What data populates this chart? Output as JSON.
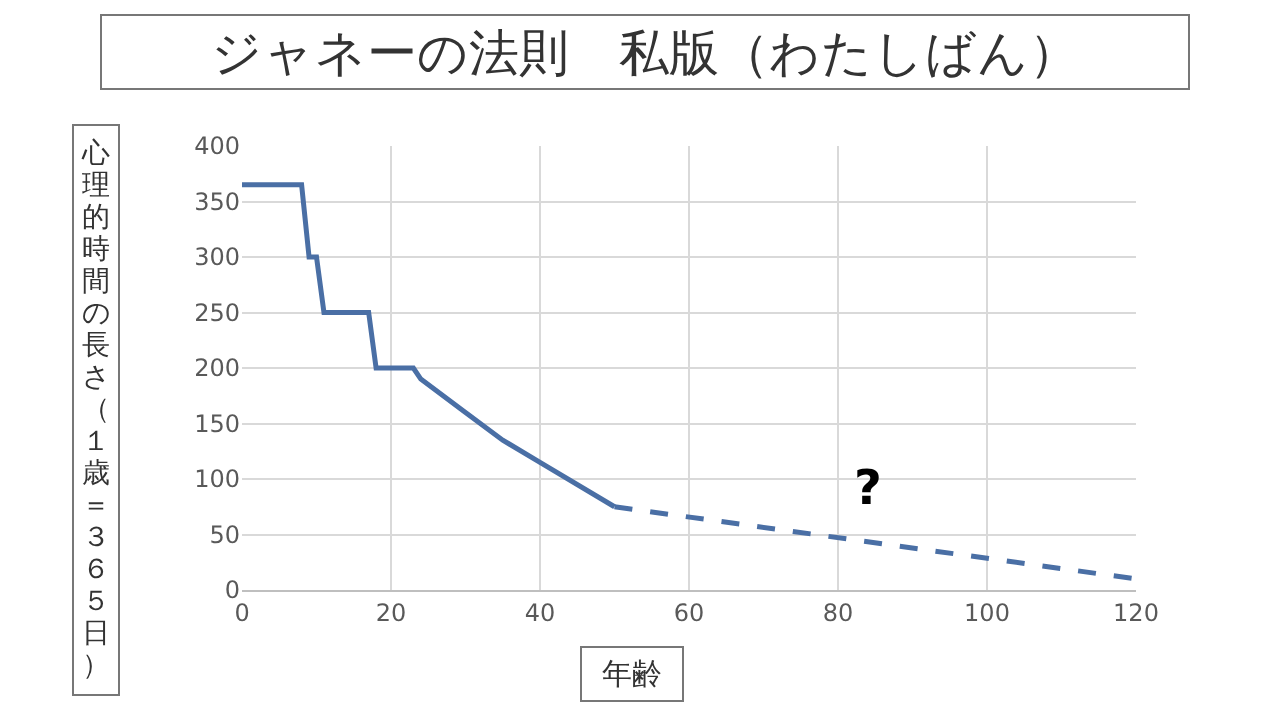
{
  "chart_data": {
    "type": "line",
    "title": "ジャネーの法則　私版（わたしばん）",
    "xlabel": "年齢",
    "ylabel": "心理的時間の長さ（１歳＝３６５日）",
    "series": [
      {
        "color": "#4a6fa5",
        "line_style": "solid",
        "x": [
          0,
          8,
          9,
          10,
          11,
          17,
          18,
          23,
          24,
          30,
          35,
          40,
          50
        ],
        "values": [
          365,
          365,
          300,
          300,
          250,
          250,
          200,
          200,
          190,
          160,
          135,
          115,
          75
        ]
      },
      {
        "color": "#4a6fa5",
        "line_style": "dashed",
        "x": [
          50,
          120
        ],
        "values": [
          75,
          10
        ]
      }
    ],
    "annotations": [
      "?"
    ],
    "xlim": [
      0,
      120
    ],
    "xticks": [
      0,
      20,
      40,
      60,
      80,
      100,
      120
    ],
    "ylim": [
      0,
      400
    ],
    "yticks": [
      0,
      50,
      100,
      150,
      200,
      250,
      300,
      350,
      400
    ],
    "grid": true,
    "marker": "none"
  }
}
